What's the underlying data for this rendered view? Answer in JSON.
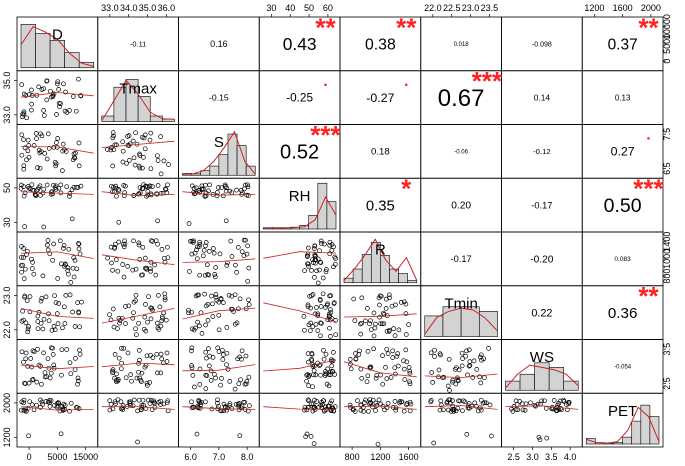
{
  "chart_data": {
    "type": "scatter-matrix",
    "variables": [
      "D",
      "Tmax",
      "S",
      "RH",
      "R",
      "Tmin",
      "WS",
      "PET"
    ],
    "correlations": [
      {
        "row": 0,
        "col": 1,
        "value": "-0.11",
        "stars": ""
      },
      {
        "row": 0,
        "col": 2,
        "value": "0.16",
        "stars": ""
      },
      {
        "row": 0,
        "col": 3,
        "value": "0.43",
        "stars": "**"
      },
      {
        "row": 0,
        "col": 4,
        "value": "0.38",
        "stars": "**"
      },
      {
        "row": 0,
        "col": 5,
        "value": "0.018",
        "stars": ""
      },
      {
        "row": 0,
        "col": 6,
        "value": "-0.098",
        "stars": ""
      },
      {
        "row": 0,
        "col": 7,
        "value": "0.37",
        "stars": "**"
      },
      {
        "row": 1,
        "col": 2,
        "value": "-0.15",
        "stars": ""
      },
      {
        "row": 1,
        "col": 3,
        "value": "-0.25",
        "stars": "."
      },
      {
        "row": 1,
        "col": 4,
        "value": "-0.27",
        "stars": "."
      },
      {
        "row": 1,
        "col": 5,
        "value": "0.67",
        "stars": "***"
      },
      {
        "row": 1,
        "col": 6,
        "value": "0.14",
        "stars": ""
      },
      {
        "row": 1,
        "col": 7,
        "value": "0.13",
        "stars": ""
      },
      {
        "row": 2,
        "col": 3,
        "value": "0.52",
        "stars": "***"
      },
      {
        "row": 2,
        "col": 4,
        "value": "0.18",
        "stars": ""
      },
      {
        "row": 2,
        "col": 5,
        "value": "-0.06",
        "stars": ""
      },
      {
        "row": 2,
        "col": 6,
        "value": "-0.12",
        "stars": ""
      },
      {
        "row": 2,
        "col": 7,
        "value": "0.27",
        "stars": "."
      },
      {
        "row": 3,
        "col": 4,
        "value": "0.35",
        "stars": "*"
      },
      {
        "row": 3,
        "col": 5,
        "value": "0.20",
        "stars": ""
      },
      {
        "row": 3,
        "col": 6,
        "value": "-0.17",
        "stars": ""
      },
      {
        "row": 3,
        "col": 7,
        "value": "0.50",
        "stars": "***"
      },
      {
        "row": 4,
        "col": 5,
        "value": "-0.17",
        "stars": ""
      },
      {
        "row": 4,
        "col": 6,
        "value": "-0.20",
        "stars": ""
      },
      {
        "row": 4,
        "col": 7,
        "value": "0.083",
        "stars": ""
      },
      {
        "row": 5,
        "col": 6,
        "value": "0.22",
        "stars": ""
      },
      {
        "row": 5,
        "col": 7,
        "value": "0.36",
        "stars": "**"
      },
      {
        "row": 6,
        "col": 7,
        "value": "-0.054",
        "stars": ""
      }
    ],
    "histograms": [
      {
        "var": "D",
        "bars": [
          0.95,
          0.75,
          0.6,
          0.33,
          0.12
        ],
        "density": [
          0.5,
          0.9,
          0.78,
          0.62,
          0.32,
          0.1,
          0.03
        ]
      },
      {
        "var": "Tmax",
        "bars": [
          0.12,
          0.75,
          0.92,
          0.55,
          0.12,
          0.05
        ],
        "density": [
          0.02,
          0.45,
          0.9,
          0.6,
          0.2,
          0.06,
          0.05
        ]
      },
      {
        "var": "S",
        "bars": [
          0.04,
          0.03,
          0.1,
          0.2,
          0.45,
          0.9,
          0.65,
          0.2
        ],
        "density": [
          0.02,
          0.03,
          0.1,
          0.3,
          0.6,
          0.95,
          0.3,
          0.02
        ]
      },
      {
        "var": "RH",
        "bars": [
          0.03,
          0.03,
          0.03,
          0.04,
          0.08,
          0.3,
          1.0,
          0.6
        ],
        "density": [
          0.02,
          0.02,
          0.02,
          0.03,
          0.05,
          0.2,
          0.7,
          0.3
        ]
      },
      {
        "var": "R",
        "bars": [
          0.1,
          0.3,
          0.62,
          0.88,
          0.6,
          0.3,
          0.2,
          0.05
        ],
        "density": [
          0.05,
          0.3,
          0.6,
          0.95,
          0.5,
          0.25,
          0.55,
          0.05
        ]
      },
      {
        "var": "Tmin",
        "bars": [
          0.45,
          0.65,
          0.65,
          0.55
        ],
        "density": [
          0.05,
          0.42,
          0.55,
          0.62,
          0.58,
          0.4,
          0.12
        ]
      },
      {
        "var": "WS",
        "bars": [
          0.2,
          0.35,
          0.6,
          0.5,
          0.2
        ],
        "density": [
          0.05,
          0.35,
          0.55,
          0.5,
          0.45,
          0.35,
          0.1
        ]
      },
      {
        "var": "PET",
        "bars": [
          0.12,
          0.03,
          0.02,
          0.03,
          0.15,
          0.5,
          0.85,
          0.6
        ],
        "density": [
          0.1,
          0.03,
          0.02,
          0.05,
          0.3,
          0.8,
          0.6,
          0.05
        ]
      }
    ],
    "axes": {
      "top": [
        {
          "col": 1,
          "ticks": [
            "33.0",
            "34.0",
            "35.0",
            "36.0"
          ]
        },
        {
          "col": 3,
          "ticks": [
            "30",
            "40",
            "50",
            "60"
          ]
        },
        {
          "col": 5,
          "ticks": [
            "22.0",
            "22.5",
            "23.0",
            "23.5"
          ]
        },
        {
          "col": 7,
          "ticks": [
            "1200",
            "1600",
            "2000"
          ]
        }
      ],
      "bottom": [
        {
          "col": 0,
          "ticks": [
            "0",
            "5000",
            "15000"
          ]
        },
        {
          "col": 2,
          "ticks": [
            "6.0",
            "7.0",
            "8.0"
          ]
        },
        {
          "col": 4,
          "ticks": [
            "800",
            "1200",
            "1600"
          ]
        },
        {
          "col": 6,
          "ticks": [
            "2.5",
            "3.0",
            "3.5",
            "4.0"
          ]
        }
      ],
      "left": [
        {
          "row": 1,
          "ticks": [
            "33.0",
            "35.0"
          ]
        },
        {
          "row": 3,
          "ticks": [
            "30",
            "50"
          ]
        },
        {
          "row": 5,
          "ticks": [
            "22.0",
            "23.0"
          ]
        },
        {
          "row": 7,
          "ticks": [
            "1200",
            "2000"
          ]
        }
      ],
      "right": [
        {
          "row": 0,
          "ticks": [
            "0",
            "5000",
            "10000"
          ]
        },
        {
          "row": 2,
          "ticks": [
            "6.5",
            "7.5"
          ]
        },
        {
          "row": 4,
          "ticks": [
            "800",
            "1000",
            "1400"
          ]
        },
        {
          "row": 6,
          "ticks": [
            "2.5",
            "3.5"
          ]
        }
      ]
    },
    "colors": {
      "star": "#ff2222",
      "line": "#cc2222",
      "bar": "#d3d3d3",
      "point": "#000000"
    }
  }
}
